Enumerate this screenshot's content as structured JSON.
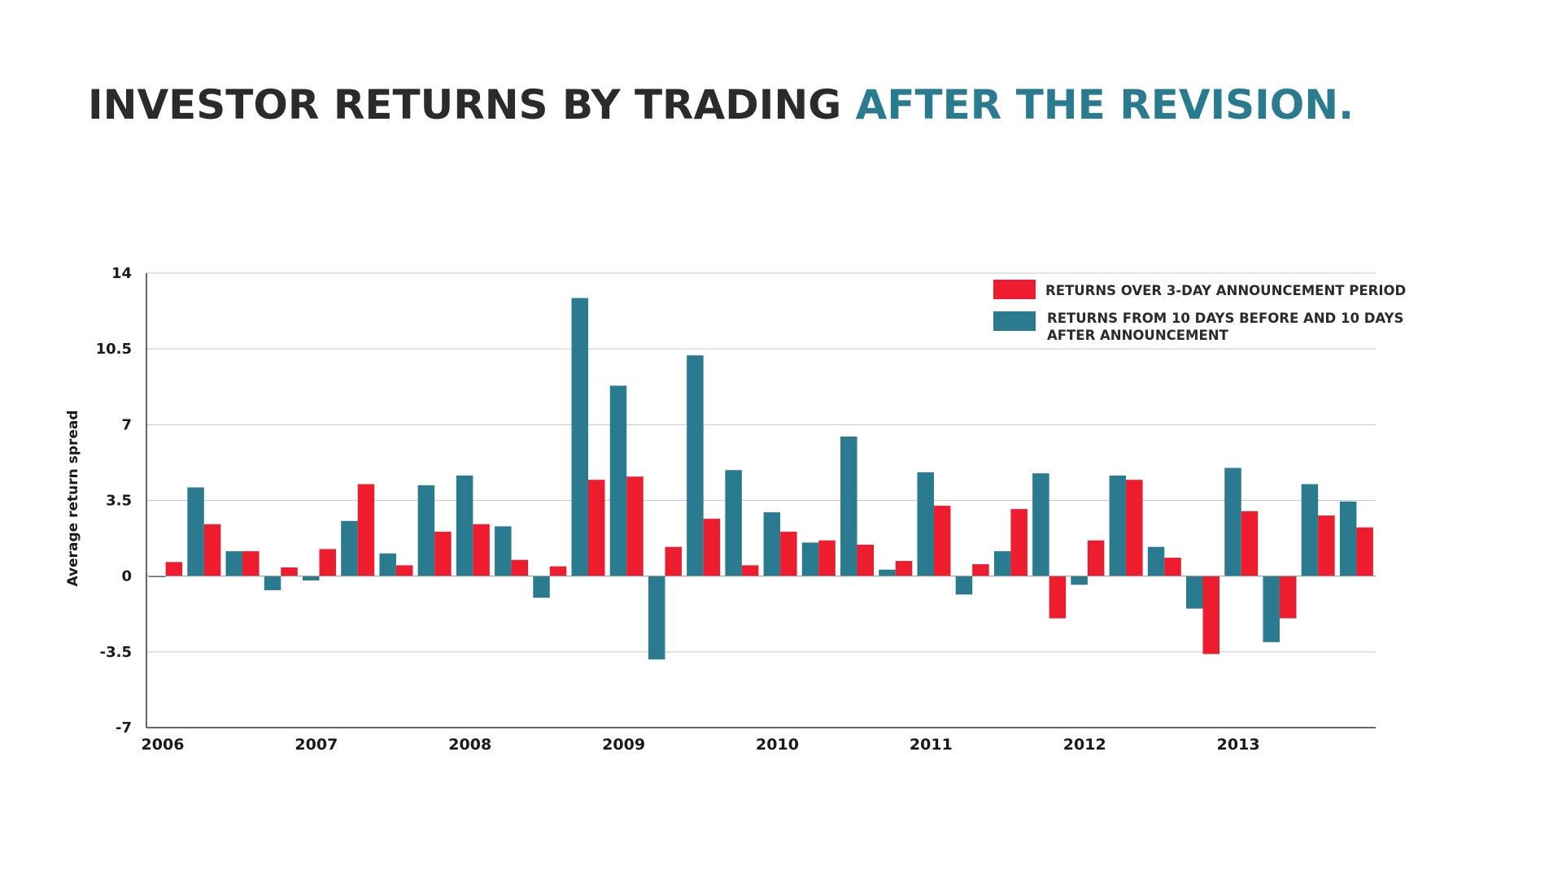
{
  "title": {
    "main": "INVESTOR RETURNS BY TRADING",
    "highlight": "AFTER THE REVISION."
  },
  "colors": {
    "title_dark": "#2b2b2b",
    "title_accent": "#2a7b8f",
    "series_3day": "#ed1c2e",
    "series_10day": "#2a7b8f"
  },
  "chart_data": {
    "type": "bar",
    "title": "INVESTOR RETURNS BY TRADING AFTER THE REVISION.",
    "xlabel": "",
    "ylabel": "Average return spread",
    "ylim": [
      -7,
      14
    ],
    "yticks": [
      14,
      10.5,
      7,
      3.5,
      0,
      -3.5,
      -7
    ],
    "ytick_labels": [
      "14",
      "10.5",
      "7",
      "3.5",
      "0",
      "-3.5",
      "-7"
    ],
    "grid": true,
    "legend_position": "top-right",
    "year_labels": [
      "2006",
      "2007",
      "2008",
      "2009",
      "2010",
      "2011",
      "2012",
      "2013"
    ],
    "categories": [
      "2006 Q1",
      "2006 Q2",
      "2006 Q3",
      "2006 Q4",
      "2007 Q1",
      "2007 Q2",
      "2007 Q3",
      "2007 Q4",
      "2008 Q1",
      "2008 Q2",
      "2008 Q3",
      "2008 Q4",
      "2009 Q1",
      "2009 Q2",
      "2009 Q3",
      "2009 Q4",
      "2010 Q1",
      "2010 Q2",
      "2010 Q3",
      "2010 Q4",
      "2011 Q1",
      "2011 Q2",
      "2011 Q3",
      "2011 Q4",
      "2012 Q1",
      "2012 Q2",
      "2012 Q3",
      "2012 Q4",
      "2013 Q1",
      "2013 Q2",
      "2013 Q3",
      "2013 Q4"
    ],
    "series": [
      {
        "name": "RETURNS FROM 10 DAYS BEFORE AND 10 DAYS AFTER ANNOUNCEMENT",
        "color": "#2a7b8f",
        "values": [
          -0.05,
          4.1,
          1.15,
          -0.65,
          -0.2,
          2.55,
          1.05,
          4.2,
          4.65,
          2.3,
          -1.0,
          12.85,
          8.8,
          -3.85,
          10.2,
          4.9,
          2.95,
          1.55,
          6.45,
          0.3,
          4.8,
          -0.85,
          1.15,
          4.75,
          -0.4,
          4.65,
          1.35,
          -1.5,
          5.0,
          -3.05,
          4.25,
          3.45
        ]
      },
      {
        "name": "RETURNS OVER 3-DAY ANNOUNCEMENT PERIOD",
        "color": "#ed1c2e",
        "values": [
          0.65,
          2.4,
          1.15,
          0.4,
          1.25,
          4.25,
          0.5,
          2.05,
          2.4,
          0.75,
          0.45,
          4.45,
          4.6,
          1.35,
          2.65,
          0.5,
          2.05,
          1.65,
          1.45,
          0.7,
          3.25,
          0.55,
          3.1,
          -1.95,
          1.65,
          4.45,
          0.85,
          -3.6,
          3.0,
          -1.95,
          2.8,
          2.25
        ]
      }
    ]
  }
}
